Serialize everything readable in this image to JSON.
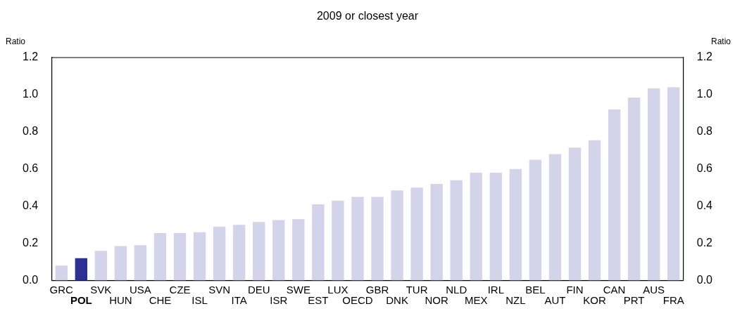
{
  "chart_data": {
    "type": "bar",
    "title": "2009 or closest year",
    "ylabel": "Ratio",
    "y2label": "Ratio",
    "categories": [
      "GRC",
      "POL",
      "SVK",
      "HUN",
      "USA",
      "CHE",
      "CZE",
      "ISL",
      "SVN",
      "ITA",
      "DEU",
      "ISR",
      "SWE",
      "EST",
      "LUX",
      "OECD",
      "GBR",
      "DNK",
      "TUR",
      "NOR",
      "NLD",
      "MEX",
      "IRL",
      "NZL",
      "BEL",
      "AUT",
      "FIN",
      "KOR",
      "CAN",
      "PRT",
      "AUS",
      "FRA"
    ],
    "values": [
      0.08,
      0.12,
      0.16,
      0.185,
      0.19,
      0.255,
      0.255,
      0.26,
      0.29,
      0.3,
      0.315,
      0.325,
      0.33,
      0.41,
      0.43,
      0.45,
      0.45,
      0.485,
      0.5,
      0.52,
      0.54,
      0.58,
      0.58,
      0.6,
      0.65,
      0.68,
      0.715,
      0.755,
      0.92,
      0.985,
      1.035,
      1.04
    ],
    "colors": [
      "#d3d3ea",
      "#2e3192",
      "#d3d3ea",
      "#d3d3ea",
      "#d3d3ea",
      "#d3d3ea",
      "#d3d3ea",
      "#d3d3ea",
      "#d3d3ea",
      "#d3d3ea",
      "#d3d3ea",
      "#d3d3ea",
      "#d3d3ea",
      "#d3d3ea",
      "#d3d3ea",
      "#d3d3ea",
      "#d3d3ea",
      "#d3d3ea",
      "#d3d3ea",
      "#d3d3ea",
      "#d3d3ea",
      "#d3d3ea",
      "#d3d3ea",
      "#d3d3ea",
      "#d3d3ea",
      "#d3d3ea",
      "#d3d3ea",
      "#d3d3ea",
      "#d3d3ea",
      "#d3d3ea",
      "#d3d3ea",
      "#d3d3ea"
    ],
    "ylim": [
      0,
      1.2
    ],
    "yticks": [
      {
        "value": 0,
        "label": "0.0"
      },
      {
        "value": 0.2,
        "label": "0.2"
      },
      {
        "value": 0.4,
        "label": "0.4"
      },
      {
        "value": 0.6,
        "label": "0.6"
      },
      {
        "value": 0.8,
        "label": "0.8"
      },
      {
        "value": 1,
        "label": "1.0"
      },
      {
        "value": 1.2,
        "label": "1.2"
      }
    ],
    "y2lim": [
      0,
      1.2
    ],
    "y2ticks": [
      {
        "value": 0,
        "label": "0.0"
      },
      {
        "value": 0.2,
        "label": "0.2"
      },
      {
        "value": 0.4,
        "label": "0.4"
      },
      {
        "value": 0.6,
        "label": "0.6"
      },
      {
        "value": 0.8,
        "label": "0.8"
      },
      {
        "value": 1,
        "label": "1.0"
      },
      {
        "value": 1.2,
        "label": "1.2"
      }
    ],
    "grid": false,
    "legend": false
  }
}
